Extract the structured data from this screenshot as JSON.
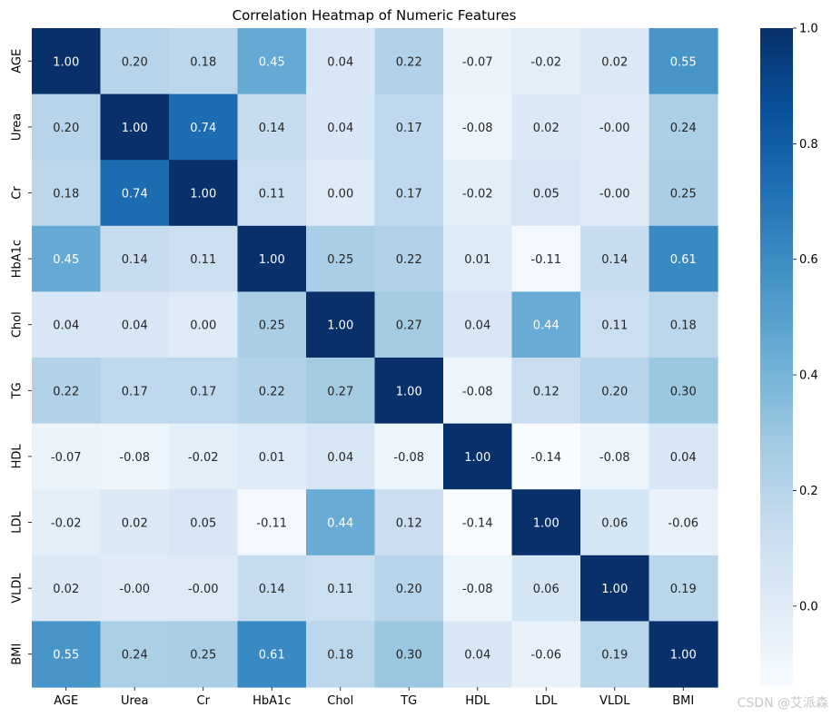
{
  "chart_data": {
    "type": "heatmap",
    "title": "Correlation Heatmap of Numeric Features",
    "xlabel": "",
    "ylabel": "",
    "labels": [
      "AGE",
      "Urea",
      "Cr",
      "HbA1c",
      "Chol",
      "TG",
      "HDL",
      "LDL",
      "VLDL",
      "BMI"
    ],
    "values": [
      [
        1.0,
        0.2,
        0.18,
        0.45,
        0.04,
        0.22,
        -0.07,
        -0.02,
        0.02,
        0.55
      ],
      [
        0.2,
        1.0,
        0.74,
        0.14,
        0.04,
        0.17,
        -0.08,
        0.02,
        -0.0,
        0.24
      ],
      [
        0.18,
        0.74,
        1.0,
        0.11,
        0.0,
        0.17,
        -0.02,
        0.05,
        -0.0,
        0.25
      ],
      [
        0.45,
        0.14,
        0.11,
        1.0,
        0.25,
        0.22,
        0.01,
        -0.11,
        0.14,
        0.61
      ],
      [
        0.04,
        0.04,
        0.0,
        0.25,
        1.0,
        0.27,
        0.04,
        0.44,
        0.11,
        0.18
      ],
      [
        0.22,
        0.17,
        0.17,
        0.22,
        0.27,
        1.0,
        -0.08,
        0.12,
        0.2,
        0.3
      ],
      [
        -0.07,
        -0.08,
        -0.02,
        0.01,
        0.04,
        -0.08,
        1.0,
        -0.14,
        -0.08,
        0.04
      ],
      [
        -0.02,
        0.02,
        0.05,
        -0.11,
        0.44,
        0.12,
        -0.14,
        1.0,
        0.06,
        -0.06
      ],
      [
        0.02,
        -0.0,
        -0.0,
        0.14,
        0.11,
        0.2,
        -0.08,
        0.06,
        1.0,
        0.19
      ],
      [
        0.55,
        0.24,
        0.25,
        0.61,
        0.18,
        0.3,
        0.04,
        -0.06,
        0.19,
        1.0
      ]
    ],
    "value_labels": [
      [
        "1.00",
        "0.20",
        "0.18",
        "0.45",
        "0.04",
        "0.22",
        "-0.07",
        "-0.02",
        "0.02",
        "0.55"
      ],
      [
        "0.20",
        "1.00",
        "0.74",
        "0.14",
        "0.04",
        "0.17",
        "-0.08",
        "0.02",
        "-0.00",
        "0.24"
      ],
      [
        "0.18",
        "0.74",
        "1.00",
        "0.11",
        "0.00",
        "0.17",
        "-0.02",
        "0.05",
        "-0.00",
        "0.25"
      ],
      [
        "0.45",
        "0.14",
        "0.11",
        "1.00",
        "0.25",
        "0.22",
        "0.01",
        "-0.11",
        "0.14",
        "0.61"
      ],
      [
        "0.04",
        "0.04",
        "0.00",
        "0.25",
        "1.00",
        "0.27",
        "0.04",
        "0.44",
        "0.11",
        "0.18"
      ],
      [
        "0.22",
        "0.17",
        "0.17",
        "0.22",
        "0.27",
        "1.00",
        "-0.08",
        "0.12",
        "0.20",
        "0.30"
      ],
      [
        "-0.07",
        "-0.08",
        "-0.02",
        "0.01",
        "0.04",
        "-0.08",
        "1.00",
        "-0.14",
        "-0.08",
        "0.04"
      ],
      [
        "-0.02",
        "0.02",
        "0.05",
        "-0.11",
        "0.44",
        "0.12",
        "-0.14",
        "1.00",
        "0.06",
        "-0.06"
      ],
      [
        "0.02",
        "-0.00",
        "-0.00",
        "0.14",
        "0.11",
        "0.20",
        "-0.08",
        "0.06",
        "1.00",
        "0.19"
      ],
      [
        "0.55",
        "0.24",
        "0.25",
        "0.61",
        "0.18",
        "0.30",
        "0.04",
        "-0.06",
        "0.19",
        "1.00"
      ]
    ],
    "colormap": "Blues",
    "vmin": -0.14,
    "vmax": 1.0,
    "colorbar_ticks": [
      0.0,
      0.2,
      0.4,
      0.6,
      0.8,
      1.0
    ],
    "colorbar_tick_labels": [
      "0.0",
      "0.2",
      "0.4",
      "0.6",
      "0.8",
      "1.0"
    ],
    "grid": false,
    "colorbar_position": "right"
  },
  "watermark": "CSDN @艾派森"
}
